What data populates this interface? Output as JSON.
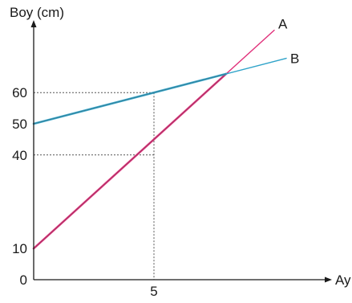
{
  "chart_data": {
    "type": "line",
    "title": "",
    "ylabel": "Boy (cm)",
    "xlabel": "Ay",
    "x_ticks": [
      5
    ],
    "y_ticks": [
      0,
      10,
      40,
      50,
      60
    ],
    "xlim": [
      0,
      10.5
    ],
    "ylim": [
      0,
      83
    ],
    "grid": false,
    "series": [
      {
        "name": "A",
        "color": "#e0307a",
        "bold_until_x": 8,
        "points": [
          [
            0,
            10
          ],
          [
            10,
            80
          ]
        ]
      },
      {
        "name": "B",
        "color": "#2fa3c9",
        "bold_until_x": 8,
        "points": [
          [
            0,
            50
          ],
          [
            10.5,
            71
          ]
        ]
      }
    ],
    "guides": [
      {
        "x": 5,
        "y": 60
      },
      {
        "x": 5,
        "y": 40
      }
    ]
  }
}
